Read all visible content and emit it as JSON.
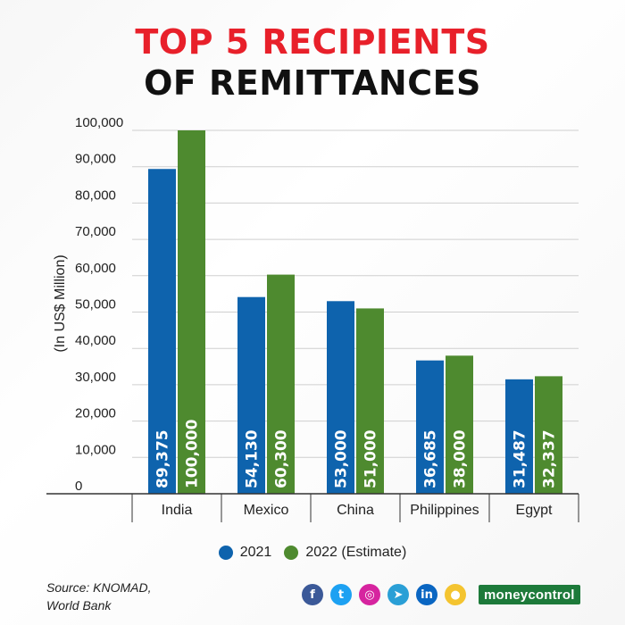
{
  "title": {
    "line1": "TOP 5 RECIPIENTS",
    "line2": "OF REMITTANCES"
  },
  "chart_data": {
    "type": "bar",
    "categories": [
      "India",
      "Mexico",
      "China",
      "Philippines",
      "Egypt"
    ],
    "series": [
      {
        "name": "2021",
        "color": "#0e63ad",
        "values": [
          89375,
          54130,
          53000,
          36685,
          31487
        ],
        "labels": [
          "89,375",
          "54,130",
          "53,000",
          "36,685",
          "31,487"
        ]
      },
      {
        "name": "2022 (Estimate)",
        "color": "#4e8a2f",
        "values": [
          100000,
          60300,
          51000,
          38000,
          32337
        ],
        "labels": [
          "100,000",
          "60,300",
          "51,000",
          "38,000",
          "32,337"
        ]
      }
    ],
    "ylabel": "(In US$ Million)",
    "ylim": [
      0,
      100000
    ],
    "yticks": [
      "0",
      "10,000",
      "20,000",
      "30,000",
      "40,000",
      "50,000",
      "60,000",
      "70,000",
      "80,000",
      "90,000",
      "100,000"
    ],
    "grid": true,
    "legend": "bottom-center"
  },
  "source": {
    "line1": "Source: KNOMAD,",
    "line2": "World Bank"
  },
  "social": [
    {
      "icon": "facebook-icon",
      "glyph": "f",
      "color": "#3b5998"
    },
    {
      "icon": "twitter-icon",
      "glyph": "t",
      "color": "#1da1f2"
    },
    {
      "icon": "instagram-icon",
      "glyph": "◎",
      "color": "#d6249f"
    },
    {
      "icon": "telegram-icon",
      "glyph": "➤",
      "color": "#2a9fd6"
    },
    {
      "icon": "linkedin-icon",
      "glyph": "in",
      "color": "#0a66c2"
    },
    {
      "icon": "koo-icon",
      "glyph": "●",
      "color": "#f4c430"
    }
  ],
  "brand": "moneycontrol"
}
